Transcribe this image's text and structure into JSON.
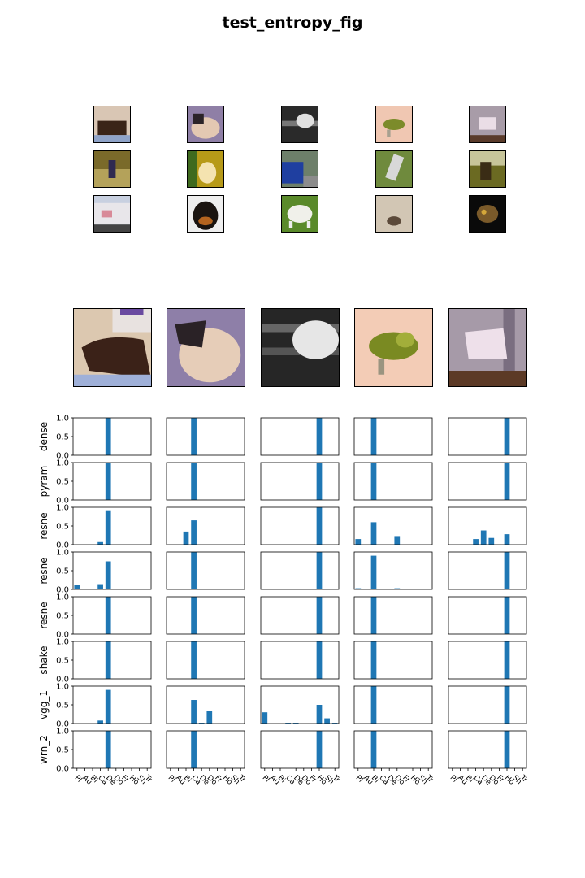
{
  "title": "test_entropy_fig",
  "thumbnails": [
    [
      "brown-cat-lying",
      "ragdoll-cat",
      "grey-dog-in-car",
      "green-bird",
      "white-horse"
    ],
    [
      "person-in-field",
      "dog-on-yellow",
      "blue-car",
      "truck-on-grass",
      "horse-in-field"
    ],
    [
      "white-truck",
      "rottweiler-dog",
      "white-cow",
      "frog-on-sand",
      "cat-in-dark"
    ]
  ],
  "large_images": [
    "brown-cat-lying",
    "ragdoll-cat",
    "grey-dog-in-car",
    "green-bird",
    "white-horse"
  ],
  "colors": {
    "bar": "#1f77b4",
    "axis": "#000000"
  },
  "chart_data": {
    "type": "bar",
    "categories": [
      "P",
      "A",
      "B",
      "C",
      "D",
      "Do",
      "F",
      "H",
      "S",
      "T"
    ],
    "tick_labels_shown": [
      "Pl",
      "Au",
      "Bi",
      "Ca",
      "De",
      "Do",
      "Fr",
      "Ho",
      "Sh",
      "Tr"
    ],
    "ylim": [
      0,
      1.0
    ],
    "yticks": [
      "0.0",
      "0.5",
      "1.0"
    ],
    "row_labels": [
      "dense",
      "pyram",
      "resne",
      "resne",
      "resne",
      "shake",
      "vgg_1",
      "wrn_2"
    ],
    "panels": [
      [
        [
          0,
          0,
          0,
          0,
          1.0,
          0,
          0,
          0,
          0,
          0
        ],
        [
          0,
          0,
          0,
          1.0,
          0,
          0,
          0,
          0,
          0,
          0
        ],
        [
          0,
          0,
          0,
          0,
          0,
          0,
          0,
          1.0,
          0,
          0
        ],
        [
          0,
          0,
          1.0,
          0,
          0,
          0,
          0,
          0,
          0,
          0
        ],
        [
          0,
          0,
          0,
          0,
          0,
          0,
          0,
          1.0,
          0,
          0
        ]
      ],
      [
        [
          0,
          0,
          0,
          0,
          1.0,
          0,
          0,
          0,
          0,
          0
        ],
        [
          0,
          0,
          0,
          1.0,
          0,
          0,
          0,
          0,
          0,
          0
        ],
        [
          0,
          0,
          0,
          0,
          0,
          0,
          0,
          1.0,
          0,
          0
        ],
        [
          0,
          0,
          1.0,
          0,
          0,
          0,
          0,
          0,
          0,
          0
        ],
        [
          0,
          0,
          0,
          0,
          0,
          0,
          0,
          1.0,
          0,
          0
        ]
      ],
      [
        [
          0,
          0,
          0,
          0.07,
          0.92,
          0,
          0,
          0,
          0,
          0
        ],
        [
          0,
          0,
          0.35,
          0.65,
          0,
          0,
          0,
          0,
          0,
          0
        ],
        [
          0,
          0,
          0,
          0,
          0,
          0,
          0,
          1.0,
          0,
          0
        ],
        [
          0.15,
          0,
          0.6,
          0,
          0,
          0.23,
          0,
          0,
          0,
          0
        ],
        [
          0,
          0,
          0,
          0.15,
          0.38,
          0.18,
          0,
          0.28,
          0,
          0
        ]
      ],
      [
        [
          0.12,
          0,
          0,
          0.14,
          0.75,
          0,
          0,
          0,
          0,
          0
        ],
        [
          0,
          0,
          0,
          1.0,
          0,
          0,
          0,
          0,
          0,
          0
        ],
        [
          0,
          0,
          0,
          0,
          0,
          0,
          0,
          1.0,
          0,
          0
        ],
        [
          0.03,
          0,
          0.9,
          0,
          0,
          0.03,
          0,
          0,
          0,
          0
        ],
        [
          0,
          0,
          0,
          0,
          0,
          0,
          0,
          1.0,
          0,
          0
        ]
      ],
      [
        [
          0,
          0,
          0,
          0,
          1.0,
          0,
          0,
          0,
          0,
          0
        ],
        [
          0,
          0,
          0,
          1.0,
          0,
          0,
          0,
          0,
          0,
          0
        ],
        [
          0,
          0,
          0,
          0,
          0,
          0,
          0,
          1.0,
          0,
          0
        ],
        [
          0,
          0,
          1.0,
          0,
          0,
          0,
          0,
          0,
          0,
          0
        ],
        [
          0,
          0,
          0,
          0,
          0,
          0,
          0,
          1.0,
          0,
          0
        ]
      ],
      [
        [
          0,
          0,
          0,
          0,
          1.0,
          0,
          0,
          0,
          0,
          0
        ],
        [
          0,
          0,
          0,
          1.0,
          0,
          0,
          0,
          0,
          0,
          0
        ],
        [
          0,
          0,
          0,
          0,
          0,
          0,
          0,
          1.0,
          0,
          0
        ],
        [
          0,
          0,
          1.0,
          0,
          0,
          0,
          0,
          0,
          0,
          0
        ],
        [
          0,
          0,
          0,
          0,
          0,
          0,
          0,
          1.0,
          0,
          0
        ]
      ],
      [
        [
          0,
          0,
          0,
          0.08,
          0.9,
          0,
          0,
          0,
          0,
          0
        ],
        [
          0,
          0,
          0,
          0.63,
          0.02,
          0.33,
          0,
          0,
          0,
          0
        ],
        [
          0.3,
          0,
          0,
          0.02,
          0.02,
          0,
          0,
          0.5,
          0.14,
          0.02
        ],
        [
          0,
          0,
          1.0,
          0,
          0,
          0,
          0,
          0,
          0,
          0
        ],
        [
          0,
          0,
          0,
          0,
          0,
          0,
          0,
          1.0,
          0,
          0
        ]
      ],
      [
        [
          0,
          0,
          0,
          0,
          1.0,
          0,
          0,
          0,
          0,
          0
        ],
        [
          0,
          0,
          0,
          1.0,
          0,
          0,
          0,
          0,
          0,
          0
        ],
        [
          0,
          0,
          0,
          0,
          0,
          0,
          0,
          1.0,
          0,
          0
        ],
        [
          0,
          0,
          1.0,
          0,
          0,
          0,
          0,
          0,
          0,
          0
        ],
        [
          0,
          0,
          0,
          0,
          0,
          0,
          0,
          1.0,
          0,
          0
        ]
      ]
    ]
  }
}
